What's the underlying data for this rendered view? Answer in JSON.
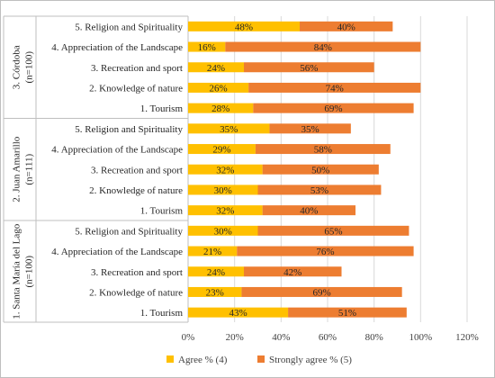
{
  "chart_data": {
    "type": "bar",
    "orientation": "horizontal",
    "stacked": true,
    "title": "",
    "xlabel": "",
    "ylabel": "",
    "xlim": [
      0,
      120
    ],
    "xticks": [
      "0%",
      "20%",
      "40%",
      "60%",
      "80%",
      "100%",
      "120%"
    ],
    "grid": true,
    "legend_position": "bottom",
    "series": [
      {
        "name": "Agree % (4)",
        "color": "#FFC000"
      },
      {
        "name": "Strongly agree % (5)",
        "color": "#ED7D31"
      }
    ],
    "groups": [
      {
        "name": "3. Córdoba",
        "sample": "(n=100)",
        "bars": [
          {
            "category": "5. Religion and Spirituality",
            "values": [
              48,
              40
            ],
            "labels": [
              "48%",
              "40%"
            ]
          },
          {
            "category": "4. Appreciation of the Landscape",
            "values": [
              16,
              84
            ],
            "labels": [
              "16%",
              "84%"
            ]
          },
          {
            "category": "3. Recreation and sport",
            "values": [
              24,
              56
            ],
            "labels": [
              "24%",
              "56%"
            ]
          },
          {
            "category": "2. Knowledge of nature",
            "values": [
              26,
              74
            ],
            "labels": [
              "26%",
              "74%"
            ]
          },
          {
            "category": "1. Tourism",
            "values": [
              28,
              69
            ],
            "labels": [
              "28%",
              "69%"
            ]
          }
        ]
      },
      {
        "name": "2. Juan Amarillo",
        "sample": "(n=111)",
        "bars": [
          {
            "category": "5. Religion and Spirituality",
            "values": [
              35,
              35
            ],
            "labels": [
              "35%",
              "35%"
            ]
          },
          {
            "category": "4. Appreciation of the Landscape",
            "values": [
              29,
              58
            ],
            "labels": [
              "29%",
              "58%"
            ]
          },
          {
            "category": "3. Recreation and sport",
            "values": [
              32,
              50
            ],
            "labels": [
              "32%",
              "50%"
            ]
          },
          {
            "category": "2. Knowledge of nature",
            "values": [
              30,
              53
            ],
            "labels": [
              "30%",
              "53%"
            ]
          },
          {
            "category": "1. Tourism",
            "values": [
              32,
              40
            ],
            "labels": [
              "32%",
              "40%"
            ]
          }
        ]
      },
      {
        "name": "1. Santa María del Lago",
        "sample": "(n=100)",
        "bars": [
          {
            "category": "5. Religion and Spirituality",
            "values": [
              30,
              65
            ],
            "labels": [
              "30%",
              "65%"
            ]
          },
          {
            "category": "4. Appreciation of the Landscape",
            "values": [
              21,
              76
            ],
            "labels": [
              "21%",
              "76%"
            ]
          },
          {
            "category": "3. Recreation and sport",
            "values": [
              24,
              42
            ],
            "labels": [
              "24%",
              "42%"
            ]
          },
          {
            "category": "2. Knowledge of nature",
            "values": [
              23,
              69
            ],
            "labels": [
              "23%",
              "69%"
            ]
          },
          {
            "category": "1. Tourism",
            "values": [
              43,
              51
            ],
            "labels": [
              "43%",
              "51%"
            ]
          }
        ]
      }
    ]
  }
}
